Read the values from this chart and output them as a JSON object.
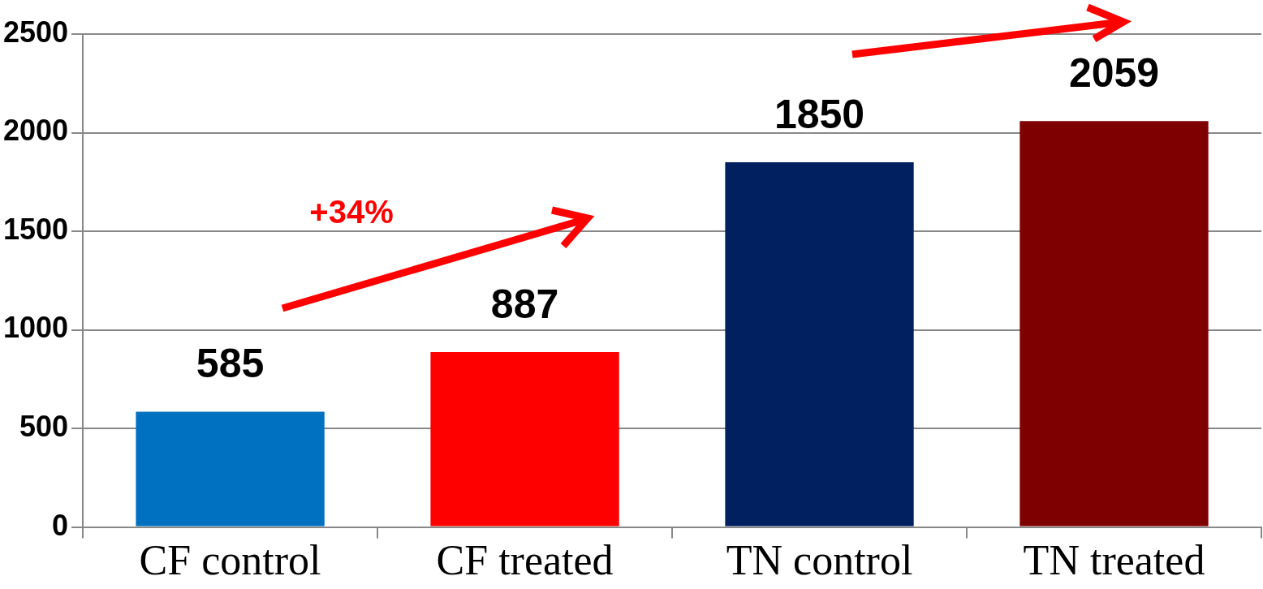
{
  "chart_data": {
    "type": "bar",
    "categories": [
      "CF control",
      "CF treated",
      "TN control",
      "TN treated"
    ],
    "values": [
      585,
      887,
      1850,
      2059
    ],
    "colors": [
      "#0070c0",
      "#ff0000",
      "#002060",
      "#7f0000"
    ],
    "ylim": [
      0,
      2500
    ],
    "yticks": [
      0,
      500,
      1000,
      1500,
      2000,
      2500
    ],
    "grid": "y",
    "legend": false,
    "data_labels": true,
    "annotations": [
      "+34%"
    ]
  }
}
